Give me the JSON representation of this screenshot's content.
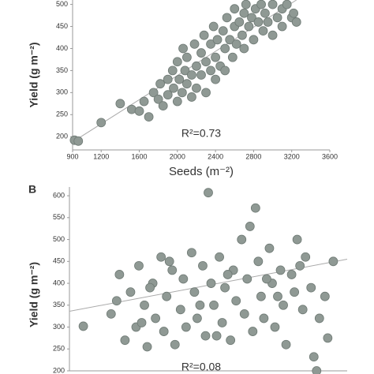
{
  "chart_data": [
    {
      "type": "scatter",
      "annotation": "R²=0.73",
      "xlabel": "Seeds (m⁻²)",
      "ylabel": "Yield (g m⁻²)",
      "color": "#8f9994",
      "xlim": [
        900,
        3600
      ],
      "ylim": [
        170,
        510
      ],
      "xticks": [
        900,
        1200,
        1600,
        2000,
        2400,
        2800,
        3200,
        3600
      ],
      "yticks": [
        200,
        250,
        300,
        350,
        400,
        450,
        500
      ],
      "x": [
        920,
        960,
        1200,
        1400,
        1520,
        1600,
        1650,
        1700,
        1750,
        1800,
        1820,
        1850,
        1900,
        1900,
        1950,
        1960,
        2000,
        2000,
        2020,
        2050,
        2060,
        2080,
        2100,
        2100,
        2150,
        2150,
        2180,
        2200,
        2200,
        2250,
        2250,
        2280,
        2300,
        2300,
        2350,
        2350,
        2380,
        2400,
        2400,
        2420,
        2450,
        2480,
        2500,
        2500,
        2520,
        2550,
        2580,
        2600,
        2600,
        2620,
        2650,
        2680,
        2700,
        2700,
        2720,
        2750,
        2780,
        2800,
        2820,
        2850,
        2880,
        2900,
        2920,
        2950,
        3000,
        3000,
        3050,
        3100,
        3100,
        3150,
        3200,
        3220,
        3250
      ],
      "values": [
        192,
        190,
        232,
        275,
        262,
        258,
        280,
        245,
        300,
        285,
        320,
        270,
        330,
        295,
        350,
        310,
        280,
        370,
        330,
        300,
        400,
        350,
        320,
        380,
        290,
        340,
        410,
        360,
        310,
        390,
        340,
        430,
        370,
        300,
        410,
        350,
        450,
        380,
        330,
        420,
        360,
        440,
        400,
        350,
        470,
        420,
        380,
        450,
        490,
        410,
        460,
        430,
        480,
        400,
        500,
        450,
        470,
        420,
        490,
        460,
        500,
        440,
        480,
        460,
        500,
        430,
        470,
        490,
        450,
        500,
        470,
        480,
        460
      ],
      "fit": {
        "x": [
          900,
          3250
        ],
        "values": [
          188,
          510
        ]
      }
    },
    {
      "type": "scatter",
      "label": "B",
      "annotation": "R²=0.08",
      "ylabel": "Yield (g m⁻²)",
      "color": "#8f9994",
      "xlim": [
        0,
        100
      ],
      "ylim": [
        200,
        620
      ],
      "yticks": [
        200,
        250,
        300,
        350,
        400,
        450,
        500,
        550,
        600
      ],
      "x": [
        5,
        50,
        67,
        88,
        93,
        89,
        15,
        18,
        20,
        22,
        24,
        25,
        27,
        28,
        30,
        31,
        33,
        34,
        35,
        37,
        38,
        40,
        41,
        42,
        44,
        45,
        46,
        48,
        49,
        51,
        52,
        54,
        55,
        56,
        58,
        59,
        60,
        62,
        63,
        64,
        66,
        68,
        69,
        70,
        72,
        73,
        74,
        76,
        77,
        78,
        80,
        81,
        82,
        84,
        85,
        87,
        90,
        92,
        95,
        17,
        26,
        36,
        47,
        57,
        65,
        75,
        83,
        29,
        53,
        71
      ],
      "values": [
        302,
        607,
        572,
        232,
        275,
        200,
        330,
        420,
        270,
        380,
        300,
        440,
        350,
        255,
        400,
        320,
        460,
        290,
        370,
        430,
        260,
        340,
        410,
        300,
        470,
        380,
        320,
        440,
        280,
        400,
        350,
        460,
        310,
        390,
        270,
        430,
        360,
        500,
        330,
        410,
        290,
        450,
        370,
        320,
        480,
        400,
        300,
        430,
        350,
        260,
        420,
        380,
        500,
        340,
        460,
        390,
        320,
        370,
        450,
        360,
        310,
        450,
        350,
        420,
        530,
        370,
        440,
        390,
        280,
        410
      ],
      "fit": {
        "x": [
          0,
          100
        ],
        "values": [
          336,
          455
        ]
      }
    }
  ]
}
